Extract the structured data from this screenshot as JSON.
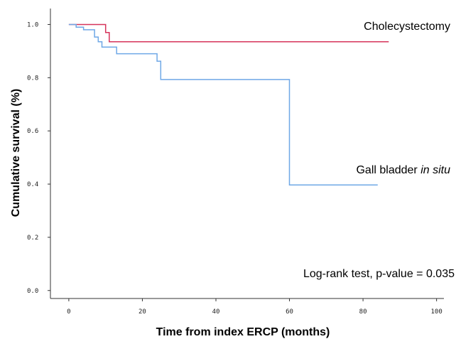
{
  "chart_data": {
    "type": "line",
    "title": "",
    "xlabel": "Time from index ERCP (months)",
    "ylabel": "Cumulative survival (%)",
    "xlim": [
      -5,
      102
    ],
    "ylim": [
      -0.03,
      1.06
    ],
    "xticks": [
      0,
      20,
      40,
      60,
      80,
      100
    ],
    "xtick_labels": [
      "0",
      "20",
      "40",
      "60",
      "80",
      "100"
    ],
    "yticks": [
      0.0,
      0.2,
      0.4,
      0.6,
      0.8,
      1.0
    ],
    "ytick_labels": [
      "0.0",
      "0.2",
      "0.4",
      "0.6",
      "0.8",
      "1.0"
    ],
    "grid": false,
    "step": "post",
    "series": [
      {
        "name": "Cholecystectomy",
        "color": "#d6335a",
        "points": [
          [
            0,
            1.0
          ],
          [
            10,
            1.0
          ],
          [
            10,
            0.97
          ],
          [
            11,
            0.97
          ],
          [
            11,
            0.935
          ],
          [
            87,
            0.935
          ]
        ]
      },
      {
        "name": "Gall bladder in situ",
        "color": "#6fa8e6",
        "points": [
          [
            0,
            1.0
          ],
          [
            2,
            1.0
          ],
          [
            2,
            0.99
          ],
          [
            4,
            0.99
          ],
          [
            4,
            0.98
          ],
          [
            7,
            0.98
          ],
          [
            7,
            0.953
          ],
          [
            8,
            0.953
          ],
          [
            8,
            0.935
          ],
          [
            9,
            0.935
          ],
          [
            9,
            0.915
          ],
          [
            13,
            0.915
          ],
          [
            13,
            0.89
          ],
          [
            24,
            0.89
          ],
          [
            24,
            0.862
          ],
          [
            25,
            0.862
          ],
          [
            25,
            0.793
          ],
          [
            60,
            0.793
          ],
          [
            60,
            0.397
          ],
          [
            84,
            0.397
          ]
        ]
      }
    ],
    "annotations": {
      "cholecystectomy_label": "Cholecystectomy",
      "gallbladder_label_prefix": "Gall bladder ",
      "gallbladder_label_italic": "in situ",
      "logrank": "Log-rank test, p-value = 0.035"
    }
  }
}
